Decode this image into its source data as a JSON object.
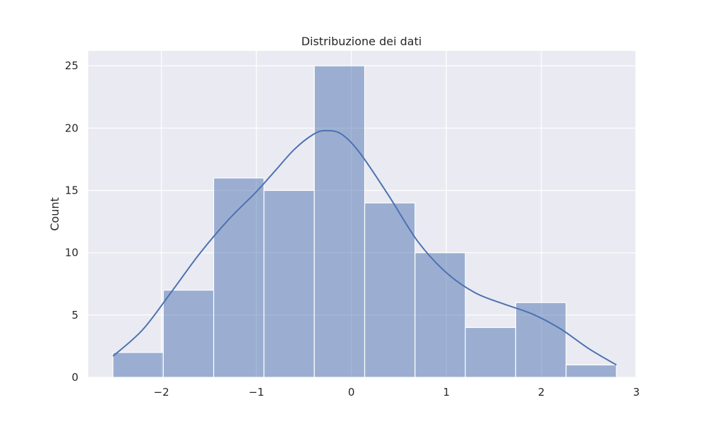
{
  "chart_data": {
    "type": "bar",
    "title": "Distribuzione dei dati",
    "xlabel": "",
    "ylabel": "Count",
    "xlim": [
      -2.77,
      2.99
    ],
    "ylim": [
      0,
      26.2
    ],
    "x_ticks": [
      {
        "value": -2,
        "label": "−2"
      },
      {
        "value": -1,
        "label": "−1"
      },
      {
        "value": 0,
        "label": "0"
      },
      {
        "value": 1,
        "label": "1"
      },
      {
        "value": 2,
        "label": "2"
      },
      {
        "value": 3,
        "label": "3"
      }
    ],
    "y_ticks": [
      {
        "value": 0,
        "label": "0"
      },
      {
        "value": 5,
        "label": "5"
      },
      {
        "value": 10,
        "label": "10"
      },
      {
        "value": 15,
        "label": "15"
      },
      {
        "value": 20,
        "label": "20"
      },
      {
        "value": 25,
        "label": "25"
      }
    ],
    "bins": [
      {
        "x0": -2.51,
        "x1": -1.98,
        "count": 2
      },
      {
        "x0": -1.98,
        "x1": -1.45,
        "count": 7
      },
      {
        "x0": -1.45,
        "x1": -0.92,
        "count": 16
      },
      {
        "x0": -0.92,
        "x1": -0.39,
        "count": 15
      },
      {
        "x0": -0.39,
        "x1": 0.14,
        "count": 25
      },
      {
        "x0": 0.14,
        "x1": 0.67,
        "count": 14
      },
      {
        "x0": 0.67,
        "x1": 1.2,
        "count": 10
      },
      {
        "x0": 1.2,
        "x1": 1.73,
        "count": 4
      },
      {
        "x0": 1.73,
        "x1": 2.26,
        "count": 6
      },
      {
        "x0": 2.26,
        "x1": 2.79,
        "count": 1
      }
    ],
    "kde": {
      "x": [
        -2.51,
        -2.2,
        -1.9,
        -1.6,
        -1.3,
        -1.0,
        -0.8,
        -0.6,
        -0.4,
        -0.27,
        -0.1,
        0.1,
        0.4,
        0.7,
        1.0,
        1.3,
        1.6,
        1.9,
        2.2,
        2.5,
        2.79
      ],
      "y": [
        1.7,
        3.8,
        6.8,
        9.9,
        12.6,
        14.9,
        16.6,
        18.3,
        19.5,
        19.8,
        19.5,
        17.9,
        14.5,
        10.9,
        8.4,
        6.8,
        5.9,
        5.1,
        3.9,
        2.3,
        1.0
      ]
    },
    "grid": true,
    "colors": {
      "background": "#eaeaf2",
      "grid": "#ffffff",
      "bar_fill": "#4c72b0",
      "bar_opacity": 0.5,
      "bar_edge": "#ffffff",
      "kde_line": "#4c72b0"
    }
  }
}
